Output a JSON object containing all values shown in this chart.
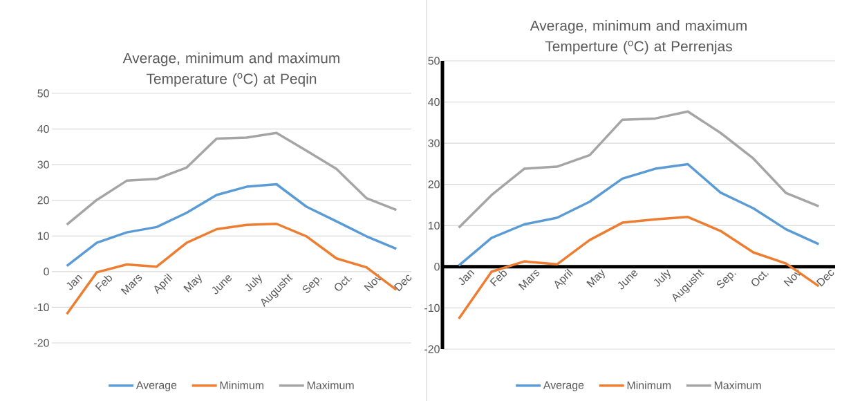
{
  "chart_data": [
    {
      "type": "line",
      "title": "Average, minimum and maximum Temperature ($^{o}$C) at Peqin",
      "categories": [
        "Jan",
        "Feb",
        "Mars",
        "April",
        "May",
        "June",
        "July",
        "Augusht",
        "Sep.",
        "Oct.",
        "Nov",
        "Dec"
      ],
      "series": [
        {
          "name": "Average",
          "color": "#5b9bd5",
          "values": [
            1.6,
            8.1,
            11,
            12.5,
            16.5,
            21.5,
            23.8,
            24.5,
            18.2,
            14.1,
            9.9,
            6.4
          ]
        },
        {
          "name": "Minimum",
          "color": "#ed7d31",
          "values": [
            -11.9,
            -0.2,
            2,
            1.4,
            8.1,
            11.9,
            13.1,
            13.4,
            9.9,
            3.7,
            1.2,
            -5.1
          ]
        },
        {
          "name": "Maximum",
          "color": "#a5a5a5",
          "values": [
            13.2,
            20.1,
            25.5,
            26,
            29.2,
            37.3,
            37.6,
            38.9,
            33.9,
            28.8,
            20.6,
            17.3
          ]
        }
      ],
      "ylim": [
        -20,
        50
      ],
      "yticks": [
        -20,
        -10,
        0,
        10,
        20,
        30,
        40,
        50
      ],
      "grid": "y",
      "legend": "bottom",
      "marker": "none",
      "line_style": "solid"
    },
    {
      "type": "line",
      "title": "Average, minimum and maximum Temperture ($^{o}$C) at Perrenjas",
      "categories": [
        "Jan",
        "Feb",
        "Mars",
        "April",
        "May",
        "June",
        "July",
        "Augusht",
        "Sep.",
        "Oct.",
        "Nov",
        "Dec"
      ],
      "series": [
        {
          "name": "Average",
          "color": "#5b9bd5",
          "values": [
            0.3,
            7,
            10.3,
            11.9,
            15.8,
            21.4,
            23.8,
            24.9,
            18,
            14.2,
            9.1,
            5.5
          ]
        },
        {
          "name": "Minimum",
          "color": "#ed7d31",
          "values": [
            -12.6,
            -1.2,
            1.3,
            0.6,
            6.5,
            10.7,
            11.5,
            12.1,
            8.7,
            3.5,
            0.8,
            -4.7
          ]
        },
        {
          "name": "Maximum",
          "color": "#a5a5a5",
          "values": [
            9.5,
            17.4,
            23.8,
            24.3,
            27.1,
            35.7,
            36,
            37.7,
            32.5,
            26.3,
            17.9,
            14.7
          ]
        }
      ],
      "ylim": [
        -20,
        50
      ],
      "yticks": [
        -20,
        -10,
        0,
        10,
        20,
        30,
        40,
        50
      ],
      "grid": "y",
      "legend": "bottom",
      "marker": "none",
      "line_style": "solid"
    }
  ]
}
